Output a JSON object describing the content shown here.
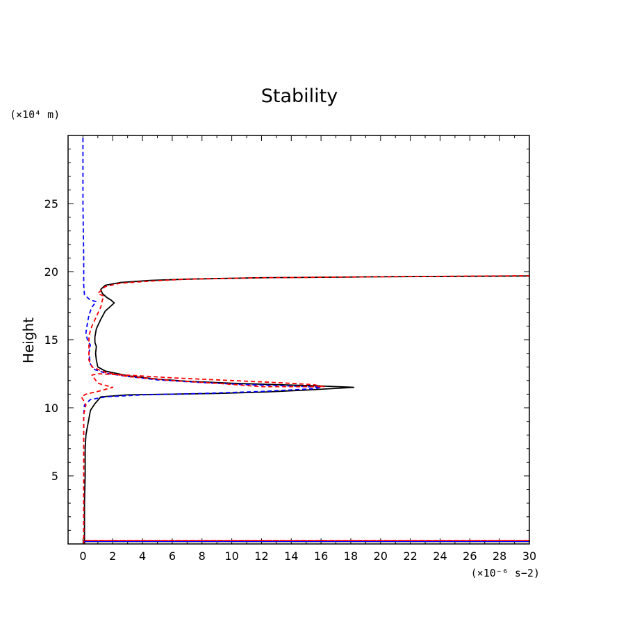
{
  "chart_data": {
    "type": "line",
    "title": "Stability",
    "xlabel": "",
    "ylabel": "Height",
    "x_unit_label": "(×10⁻⁶ s−2)",
    "y_unit_label": "(×10⁴ m)",
    "xlim": [
      -1,
      30
    ],
    "ylim": [
      0,
      30
    ],
    "x_ticks": [
      "0",
      "2",
      "4",
      "6",
      "8",
      "10",
      "12",
      "14",
      "16",
      "18",
      "20",
      "22",
      "24",
      "26",
      "28",
      "30"
    ],
    "y_ticks": [
      "5",
      "10",
      "15",
      "20",
      "25"
    ],
    "grid": false,
    "series": [
      {
        "color": "#000000",
        "style": "solid",
        "points": [
          [
            0.1,
            0.0
          ],
          [
            0.1,
            0.18
          ],
          [
            30,
            0.18
          ],
          [
            30,
            0.2
          ],
          [
            0.1,
            0.2
          ],
          [
            0.1,
            1.0
          ],
          [
            0.1,
            3.0
          ],
          [
            0.15,
            5.0
          ],
          [
            0.15,
            7.0
          ],
          [
            0.2,
            8.0
          ],
          [
            0.3,
            8.6
          ],
          [
            0.4,
            9.2
          ],
          [
            0.5,
            9.8
          ],
          [
            0.8,
            10.3
          ],
          [
            1.2,
            10.8
          ],
          [
            3.0,
            10.95
          ],
          [
            6.0,
            11.0
          ],
          [
            9.0,
            11.05
          ],
          [
            12.0,
            11.15
          ],
          [
            15.0,
            11.3
          ],
          [
            18.2,
            11.5
          ],
          [
            16.0,
            11.6
          ],
          [
            13.0,
            11.7
          ],
          [
            10.0,
            11.8
          ],
          [
            7.0,
            11.95
          ],
          [
            5.0,
            12.1
          ],
          [
            3.0,
            12.35
          ],
          [
            1.5,
            12.7
          ],
          [
            1.0,
            13.0
          ],
          [
            0.9,
            13.5
          ],
          [
            0.85,
            14.0
          ],
          [
            0.9,
            14.5
          ],
          [
            0.8,
            14.8
          ],
          [
            0.8,
            15.2
          ],
          [
            0.9,
            15.8
          ],
          [
            1.2,
            16.5
          ],
          [
            1.5,
            17.1
          ],
          [
            1.8,
            17.4
          ],
          [
            2.1,
            17.7
          ],
          [
            1.9,
            17.9
          ],
          [
            1.6,
            18.1
          ],
          [
            1.3,
            18.4
          ],
          [
            1.2,
            18.7
          ],
          [
            1.5,
            19.0
          ],
          [
            2.5,
            19.2
          ],
          [
            4.5,
            19.35
          ],
          [
            7.0,
            19.45
          ],
          [
            12.0,
            19.55
          ],
          [
            20.0,
            19.62
          ],
          [
            30.0,
            19.68
          ]
        ]
      },
      {
        "color": "#0000ff",
        "style": "dashed",
        "points": [
          [
            0.05,
            0.0
          ],
          [
            0.05,
            0.2
          ],
          [
            30,
            0.2
          ],
          [
            0.05,
            0.2
          ],
          [
            0.05,
            3.0
          ],
          [
            0.05,
            7.0
          ],
          [
            0.05,
            9.5
          ],
          [
            0.1,
            10.2
          ],
          [
            0.5,
            10.6
          ],
          [
            1.5,
            10.8
          ],
          [
            4.0,
            10.95
          ],
          [
            8.0,
            11.05
          ],
          [
            12.0,
            11.2
          ],
          [
            15.5,
            11.4
          ],
          [
            16.0,
            11.5
          ],
          [
            14.0,
            11.6
          ],
          [
            11.0,
            11.7
          ],
          [
            8.0,
            11.85
          ],
          [
            5.0,
            12.05
          ],
          [
            3.0,
            12.3
          ],
          [
            1.5,
            12.55
          ],
          [
            0.8,
            12.8
          ],
          [
            0.5,
            13.2
          ],
          [
            0.4,
            14.0
          ],
          [
            0.5,
            14.6
          ],
          [
            0.3,
            15.0
          ],
          [
            0.2,
            15.5
          ],
          [
            0.3,
            16.2
          ],
          [
            0.4,
            16.8
          ],
          [
            0.6,
            17.4
          ],
          [
            0.9,
            17.8
          ],
          [
            0.5,
            17.9
          ],
          [
            0.1,
            18.3
          ],
          [
            0.05,
            19.0
          ],
          [
            0.05,
            21.0
          ],
          [
            0.0,
            25.0
          ],
          [
            0.0,
            30.0
          ]
        ]
      },
      {
        "color": "#ff0000",
        "style": "dashed",
        "points": [
          [
            0.05,
            0.0
          ],
          [
            0.05,
            0.25
          ],
          [
            30,
            0.25
          ],
          [
            0.05,
            0.25
          ],
          [
            0.05,
            3.0
          ],
          [
            0.05,
            7.0
          ],
          [
            0.05,
            9.5
          ],
          [
            0.2,
            10.2
          ],
          [
            -0.1,
            10.8
          ],
          [
            0.2,
            11.0
          ],
          [
            0.6,
            11.1
          ],
          [
            1.0,
            11.2
          ],
          [
            2.0,
            11.5
          ],
          [
            1.0,
            11.8
          ],
          [
            0.8,
            12.1
          ],
          [
            0.6,
            12.4
          ],
          [
            1.0,
            12.5
          ],
          [
            3.0,
            12.4
          ],
          [
            6.0,
            12.2
          ],
          [
            10.0,
            12.0
          ],
          [
            13.0,
            11.85
          ],
          [
            15.5,
            11.7
          ],
          [
            16.2,
            11.55
          ],
          [
            12.0,
            11.55
          ],
          [
            9.0,
            11.8
          ],
          [
            6.0,
            12.0
          ],
          [
            3.0,
            12.3
          ],
          [
            1.5,
            12.6
          ],
          [
            0.6,
            13.0
          ],
          [
            0.4,
            13.5
          ],
          [
            0.4,
            14.5
          ],
          [
            0.4,
            15.3
          ],
          [
            0.6,
            16.0
          ],
          [
            0.9,
            16.7
          ],
          [
            1.2,
            17.4
          ],
          [
            1.3,
            17.9
          ],
          [
            1.4,
            18.2
          ],
          [
            1.0,
            18.4
          ],
          [
            1.2,
            18.6
          ],
          [
            1.5,
            18.9
          ],
          [
            2.5,
            19.15
          ],
          [
            4.5,
            19.3
          ],
          [
            7.0,
            19.45
          ],
          [
            12.0,
            19.55
          ],
          [
            20.0,
            19.62
          ],
          [
            30.0,
            19.7
          ]
        ]
      }
    ]
  }
}
